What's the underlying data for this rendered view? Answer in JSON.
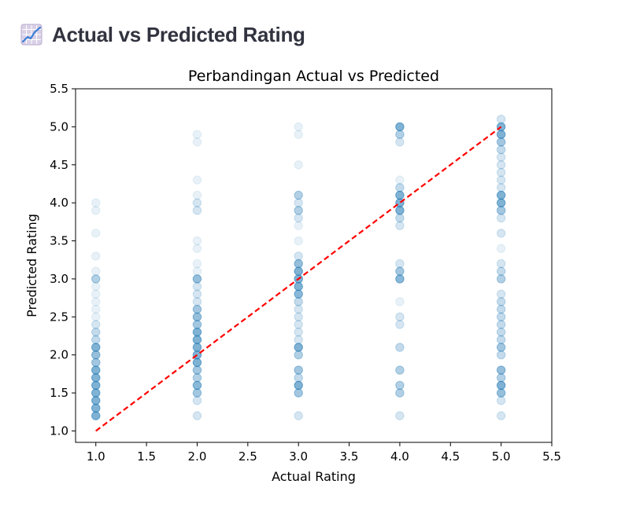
{
  "header": {
    "title": "Actual vs Predicted Rating",
    "icon": "chart-increasing-icon"
  },
  "chart_data": {
    "type": "scatter",
    "title": "Perbandingan Actual vs Predicted",
    "xlabel": "Actual Rating",
    "ylabel": "Predicted Rating",
    "xlim": [
      0.8,
      5.5
    ],
    "ylim": [
      0.85,
      5.5
    ],
    "xticks": [
      "1.0",
      "1.5",
      "2.0",
      "2.5",
      "3.0",
      "3.5",
      "4.0",
      "4.5",
      "5.0",
      "5.5"
    ],
    "yticks": [
      "1.0",
      "1.5",
      "2.0",
      "2.5",
      "3.0",
      "3.5",
      "4.0",
      "4.5",
      "5.0",
      "5.5"
    ],
    "point_color": "#1f77b4",
    "reference_line": {
      "from": [
        1,
        1
      ],
      "to": [
        5,
        5
      ],
      "color": "#ff0000",
      "style": "dashed"
    },
    "grid": false,
    "points": [
      {
        "x": 1,
        "y": 4.0,
        "n": 1
      },
      {
        "x": 1,
        "y": 3.9,
        "n": 1
      },
      {
        "x": 1,
        "y": 3.6,
        "n": 1
      },
      {
        "x": 1,
        "y": 3.3,
        "n": 1
      },
      {
        "x": 1,
        "y": 3.1,
        "n": 1
      },
      {
        "x": 1,
        "y": 3.0,
        "n": 4
      },
      {
        "x": 1,
        "y": 2.9,
        "n": 1
      },
      {
        "x": 1,
        "y": 2.8,
        "n": 1
      },
      {
        "x": 1,
        "y": 2.7,
        "n": 1
      },
      {
        "x": 1,
        "y": 2.6,
        "n": 1
      },
      {
        "x": 1,
        "y": 2.5,
        "n": 1
      },
      {
        "x": 1,
        "y": 2.4,
        "n": 2
      },
      {
        "x": 1,
        "y": 2.3,
        "n": 3
      },
      {
        "x": 1,
        "y": 2.2,
        "n": 3
      },
      {
        "x": 1,
        "y": 2.1,
        "n": 8
      },
      {
        "x": 1,
        "y": 2.0,
        "n": 6
      },
      {
        "x": 1,
        "y": 1.9,
        "n": 5
      },
      {
        "x": 1,
        "y": 1.8,
        "n": 8
      },
      {
        "x": 1,
        "y": 1.7,
        "n": 8
      },
      {
        "x": 1,
        "y": 1.6,
        "n": 8
      },
      {
        "x": 1,
        "y": 1.5,
        "n": 8
      },
      {
        "x": 1,
        "y": 1.4,
        "n": 8
      },
      {
        "x": 1,
        "y": 1.3,
        "n": 8
      },
      {
        "x": 1,
        "y": 1.2,
        "n": 8
      },
      {
        "x": 2,
        "y": 4.9,
        "n": 1
      },
      {
        "x": 2,
        "y": 4.8,
        "n": 1
      },
      {
        "x": 2,
        "y": 4.3,
        "n": 1
      },
      {
        "x": 2,
        "y": 4.1,
        "n": 1
      },
      {
        "x": 2,
        "y": 4.0,
        "n": 2
      },
      {
        "x": 2,
        "y": 3.9,
        "n": 2
      },
      {
        "x": 2,
        "y": 3.5,
        "n": 1
      },
      {
        "x": 2,
        "y": 3.4,
        "n": 1
      },
      {
        "x": 2,
        "y": 3.2,
        "n": 1
      },
      {
        "x": 2,
        "y": 3.1,
        "n": 1
      },
      {
        "x": 2,
        "y": 3.0,
        "n": 6
      },
      {
        "x": 2,
        "y": 2.9,
        "n": 2
      },
      {
        "x": 2,
        "y": 2.8,
        "n": 2
      },
      {
        "x": 2,
        "y": 2.7,
        "n": 2
      },
      {
        "x": 2,
        "y": 2.6,
        "n": 5
      },
      {
        "x": 2,
        "y": 2.5,
        "n": 6
      },
      {
        "x": 2,
        "y": 2.4,
        "n": 5
      },
      {
        "x": 2,
        "y": 2.3,
        "n": 8
      },
      {
        "x": 2,
        "y": 2.2,
        "n": 8
      },
      {
        "x": 2,
        "y": 2.1,
        "n": 8
      },
      {
        "x": 2,
        "y": 2.0,
        "n": 8
      },
      {
        "x": 2,
        "y": 1.9,
        "n": 8
      },
      {
        "x": 2,
        "y": 1.8,
        "n": 5
      },
      {
        "x": 2,
        "y": 1.7,
        "n": 4
      },
      {
        "x": 2,
        "y": 1.6,
        "n": 7
      },
      {
        "x": 2,
        "y": 1.5,
        "n": 5
      },
      {
        "x": 2,
        "y": 1.4,
        "n": 2
      },
      {
        "x": 2,
        "y": 1.2,
        "n": 2
      },
      {
        "x": 3,
        "y": 5.0,
        "n": 1
      },
      {
        "x": 3,
        "y": 4.9,
        "n": 1
      },
      {
        "x": 3,
        "y": 4.5,
        "n": 1
      },
      {
        "x": 3,
        "y": 4.1,
        "n": 4
      },
      {
        "x": 3,
        "y": 4.0,
        "n": 2
      },
      {
        "x": 3,
        "y": 3.9,
        "n": 4
      },
      {
        "x": 3,
        "y": 3.8,
        "n": 2
      },
      {
        "x": 3,
        "y": 3.7,
        "n": 1
      },
      {
        "x": 3,
        "y": 3.5,
        "n": 1
      },
      {
        "x": 3,
        "y": 3.3,
        "n": 2
      },
      {
        "x": 3,
        "y": 3.2,
        "n": 6
      },
      {
        "x": 3,
        "y": 3.1,
        "n": 8
      },
      {
        "x": 3,
        "y": 3.0,
        "n": 8
      },
      {
        "x": 3,
        "y": 2.9,
        "n": 8
      },
      {
        "x": 3,
        "y": 2.8,
        "n": 7
      },
      {
        "x": 3,
        "y": 2.7,
        "n": 3
      },
      {
        "x": 3,
        "y": 2.6,
        "n": 2
      },
      {
        "x": 3,
        "y": 2.5,
        "n": 2
      },
      {
        "x": 3,
        "y": 2.4,
        "n": 2
      },
      {
        "x": 3,
        "y": 2.3,
        "n": 2
      },
      {
        "x": 3,
        "y": 2.2,
        "n": 2
      },
      {
        "x": 3,
        "y": 2.1,
        "n": 8
      },
      {
        "x": 3,
        "y": 2.0,
        "n": 4
      },
      {
        "x": 3,
        "y": 1.8,
        "n": 5
      },
      {
        "x": 3,
        "y": 1.7,
        "n": 3
      },
      {
        "x": 3,
        "y": 1.6,
        "n": 8
      },
      {
        "x": 3,
        "y": 1.5,
        "n": 5
      },
      {
        "x": 3,
        "y": 1.2,
        "n": 2
      },
      {
        "x": 4,
        "y": 5.0,
        "n": 8
      },
      {
        "x": 4,
        "y": 4.9,
        "n": 4
      },
      {
        "x": 4,
        "y": 4.8,
        "n": 2
      },
      {
        "x": 4,
        "y": 4.3,
        "n": 1
      },
      {
        "x": 4,
        "y": 4.2,
        "n": 3
      },
      {
        "x": 4,
        "y": 4.1,
        "n": 8
      },
      {
        "x": 4,
        "y": 4.0,
        "n": 8
      },
      {
        "x": 4,
        "y": 3.9,
        "n": 8
      },
      {
        "x": 4,
        "y": 3.8,
        "n": 3
      },
      {
        "x": 4,
        "y": 3.7,
        "n": 2
      },
      {
        "x": 4,
        "y": 3.2,
        "n": 2
      },
      {
        "x": 4,
        "y": 3.1,
        "n": 5
      },
      {
        "x": 4,
        "y": 3.0,
        "n": 7
      },
      {
        "x": 4,
        "y": 2.7,
        "n": 1
      },
      {
        "x": 4,
        "y": 2.5,
        "n": 2
      },
      {
        "x": 4,
        "y": 2.4,
        "n": 2
      },
      {
        "x": 4,
        "y": 2.1,
        "n": 3
      },
      {
        "x": 4,
        "y": 1.8,
        "n": 4
      },
      {
        "x": 4,
        "y": 1.6,
        "n": 4
      },
      {
        "x": 4,
        "y": 1.5,
        "n": 4
      },
      {
        "x": 4,
        "y": 1.2,
        "n": 2
      },
      {
        "x": 5,
        "y": 5.1,
        "n": 2
      },
      {
        "x": 5,
        "y": 5.0,
        "n": 8
      },
      {
        "x": 5,
        "y": 4.9,
        "n": 8
      },
      {
        "x": 5,
        "y": 4.8,
        "n": 5
      },
      {
        "x": 5,
        "y": 4.7,
        "n": 3
      },
      {
        "x": 5,
        "y": 4.6,
        "n": 2
      },
      {
        "x": 5,
        "y": 4.5,
        "n": 2
      },
      {
        "x": 5,
        "y": 4.4,
        "n": 2
      },
      {
        "x": 5,
        "y": 4.3,
        "n": 2
      },
      {
        "x": 5,
        "y": 4.2,
        "n": 2
      },
      {
        "x": 5,
        "y": 4.1,
        "n": 8
      },
      {
        "x": 5,
        "y": 4.0,
        "n": 8
      },
      {
        "x": 5,
        "y": 3.9,
        "n": 5
      },
      {
        "x": 5,
        "y": 3.8,
        "n": 2
      },
      {
        "x": 5,
        "y": 3.6,
        "n": 2
      },
      {
        "x": 5,
        "y": 3.4,
        "n": 1
      },
      {
        "x": 5,
        "y": 3.2,
        "n": 2
      },
      {
        "x": 5,
        "y": 3.1,
        "n": 3
      },
      {
        "x": 5,
        "y": 3.0,
        "n": 4
      },
      {
        "x": 5,
        "y": 2.8,
        "n": 2
      },
      {
        "x": 5,
        "y": 2.7,
        "n": 3
      },
      {
        "x": 5,
        "y": 2.6,
        "n": 3
      },
      {
        "x": 5,
        "y": 2.5,
        "n": 3
      },
      {
        "x": 5,
        "y": 2.4,
        "n": 3
      },
      {
        "x": 5,
        "y": 2.3,
        "n": 3
      },
      {
        "x": 5,
        "y": 2.2,
        "n": 3
      },
      {
        "x": 5,
        "y": 2.1,
        "n": 5
      },
      {
        "x": 5,
        "y": 2.0,
        "n": 3
      },
      {
        "x": 5,
        "y": 1.8,
        "n": 6
      },
      {
        "x": 5,
        "y": 1.7,
        "n": 4
      },
      {
        "x": 5,
        "y": 1.6,
        "n": 8
      },
      {
        "x": 5,
        "y": 1.5,
        "n": 6
      },
      {
        "x": 5,
        "y": 1.4,
        "n": 2
      },
      {
        "x": 5,
        "y": 1.2,
        "n": 2
      }
    ]
  }
}
